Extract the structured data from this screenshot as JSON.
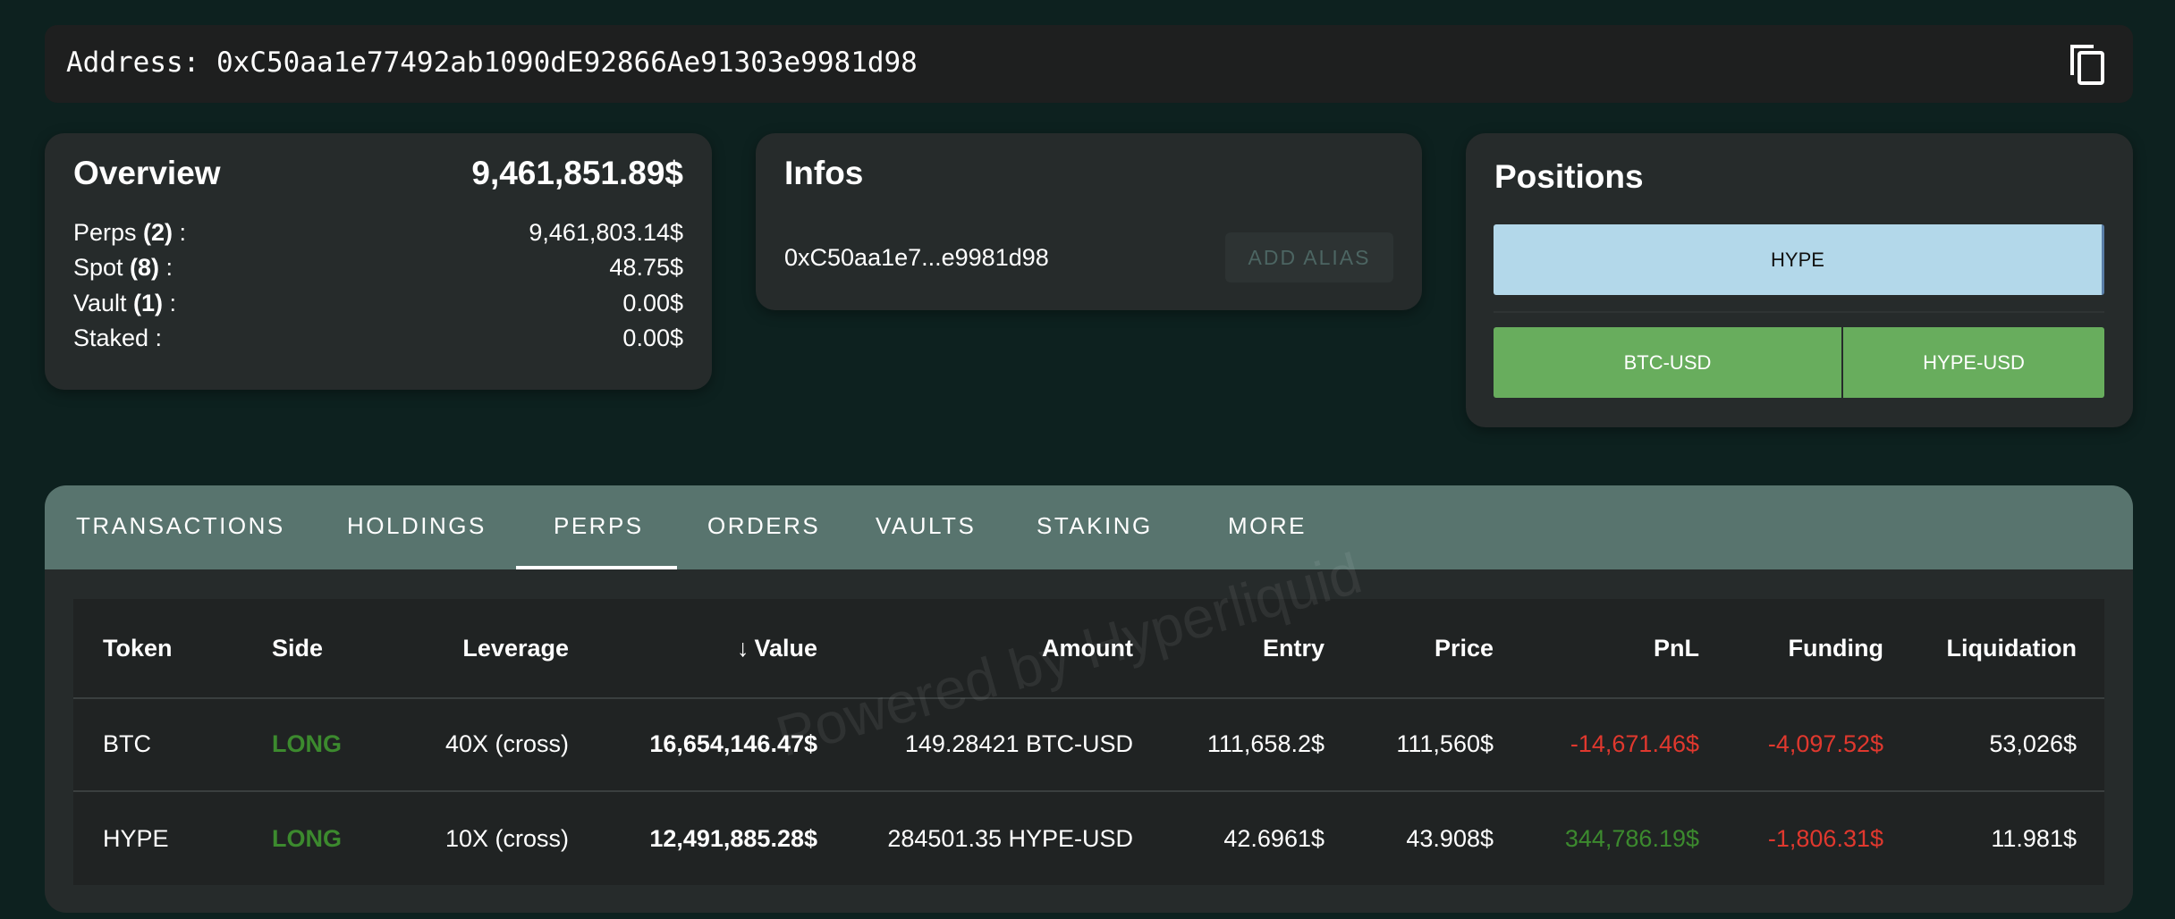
{
  "address_bar": {
    "label": "Address: 0xC50aa1e77492ab1090dE92866Ae91303e9981d98",
    "copy_icon": "copy-icon"
  },
  "overview": {
    "title": "Overview",
    "total": "9,461,851.89$",
    "rows": [
      {
        "label": "Perps ",
        "count": "(2)",
        "suffix": " :",
        "value": "9,461,803.14$"
      },
      {
        "label": "Spot ",
        "count": "(8)",
        "suffix": " :",
        "value": "48.75$"
      },
      {
        "label": "Vault ",
        "count": "(1)",
        "suffix": " :",
        "value": "0.00$"
      },
      {
        "label": "Staked :",
        "count": "",
        "suffix": "",
        "value": "0.00$"
      }
    ]
  },
  "infos": {
    "title": "Infos",
    "short_address": "0xC50aa1e7...e9981d98",
    "add_alias": "ADD ALIAS"
  },
  "positions": {
    "title": "Positions",
    "tokens": [
      {
        "label": "HYPE",
        "color": "#b3d8ea"
      }
    ],
    "markets": [
      {
        "label": "BTC-USD",
        "color": "#68ad5d"
      },
      {
        "label": "HYPE-USD",
        "color": "#68ad5d"
      }
    ]
  },
  "tabs": [
    {
      "label": "TRANSACTIONS"
    },
    {
      "label": "HOLDINGS"
    },
    {
      "label": "PERPS",
      "active": true
    },
    {
      "label": "ORDERS"
    },
    {
      "label": "VAULTS"
    },
    {
      "label": "STAKING"
    },
    {
      "label": "MORE"
    }
  ],
  "table": {
    "sort_icon": "arrow-down-icon",
    "headers": [
      "Token",
      "Side",
      "Leverage",
      "Value",
      "Amount",
      "Entry",
      "Price",
      "PnL",
      "Funding",
      "Liquidation"
    ],
    "rows": [
      [
        "BTC",
        "LONG",
        "40X (cross)",
        "16,654,146.47$",
        "149.28421 BTC-USD",
        "111,658.2$",
        "111,560$",
        "-14,671.46$",
        "-4,097.52$",
        "53,026$"
      ],
      [
        "HYPE",
        "LONG",
        "10X (cross)",
        "12,491,885.28$",
        "284501.35 HYPE-USD",
        "42.6961$",
        "43.908$",
        "344,786.19$",
        "-1,806.31$",
        "11.981$"
      ]
    ]
  },
  "watermark": "Powered by Hyperliquid",
  "colors": {
    "background": "#0d211f",
    "card": "#262b2b",
    "tab_bar": "#58746e",
    "long": "#3c8a2e",
    "negative": "#e0382e"
  }
}
